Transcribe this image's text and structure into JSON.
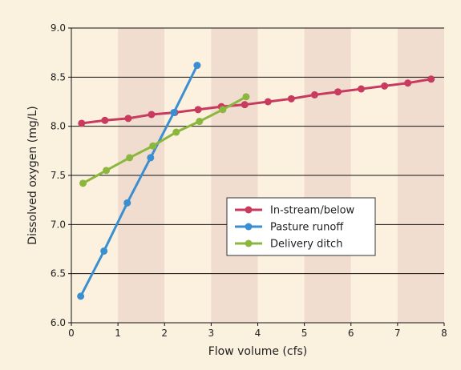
{
  "chart_data": {
    "type": "line",
    "title": "",
    "xlabel": "Flow volume (cfs)",
    "ylabel": "Dissolved oxygen (mg/L)",
    "xlim": [
      0,
      8
    ],
    "ylim": [
      6.0,
      9.0
    ],
    "xticks": [
      "0",
      "1",
      "2",
      "3",
      "4",
      "5",
      "6",
      "7",
      "8"
    ],
    "yticks": [
      "6.0",
      "6.5",
      "7.0",
      "7.5",
      "8.0",
      "8.5",
      "9.0"
    ],
    "grid": true,
    "legend_position": "center-right",
    "background_bands": {
      "light": "#fcf1de",
      "dark": "#f1ddd0"
    },
    "series": [
      {
        "name": "In-stream/below",
        "color": "#c83a5e",
        "points": [
          [
            0.22,
            8.03
          ],
          [
            0.72,
            8.06
          ],
          [
            1.22,
            8.08
          ],
          [
            1.72,
            8.12
          ],
          [
            2.22,
            8.14
          ],
          [
            2.72,
            8.17
          ],
          [
            3.22,
            8.2
          ],
          [
            3.72,
            8.22
          ],
          [
            4.22,
            8.25
          ],
          [
            4.72,
            8.28
          ],
          [
            5.22,
            8.32
          ],
          [
            5.72,
            8.35
          ],
          [
            6.22,
            8.38
          ],
          [
            6.72,
            8.41
          ],
          [
            7.22,
            8.44
          ],
          [
            7.72,
            8.48
          ]
        ]
      },
      {
        "name": "Pasture runoff",
        "color": "#3b8fd1",
        "points": [
          [
            0.2,
            6.27
          ],
          [
            0.7,
            6.73
          ],
          [
            1.2,
            7.22
          ],
          [
            1.7,
            7.68
          ],
          [
            2.2,
            8.14
          ],
          [
            2.7,
            8.62
          ]
        ]
      },
      {
        "name": "Delivery ditch",
        "color": "#8cb73f",
        "points": [
          [
            0.25,
            7.42
          ],
          [
            0.75,
            7.55
          ],
          [
            1.25,
            7.68
          ],
          [
            1.75,
            7.8
          ],
          [
            2.25,
            7.94
          ],
          [
            2.75,
            8.05
          ],
          [
            3.25,
            8.17
          ],
          [
            3.75,
            8.3
          ]
        ]
      }
    ]
  }
}
